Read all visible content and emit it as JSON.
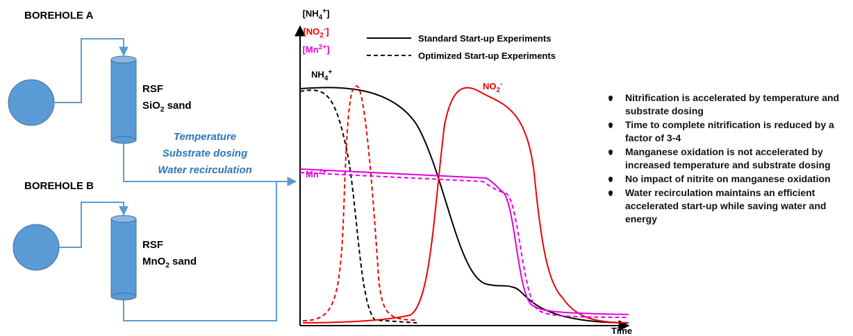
{
  "boreholes": [
    {
      "label": "BOREHOLE A",
      "filter": "RSF",
      "media": {
        "pre": "SiO",
        "sub": "2",
        "post": " sand"
      }
    },
    {
      "label": "BOREHOLE B",
      "filter": "RSF",
      "media": {
        "pre": "MnO",
        "sub": "2",
        "post": " sand"
      }
    }
  ],
  "conditions": [
    "Temperature",
    "Substrate dosing",
    "Water recirculation"
  ],
  "axis": {
    "y_labels": [
      {
        "pre": "[NH",
        "sub": "4",
        "sup": "+",
        "post": "]"
      },
      {
        "pre": "[NO",
        "sub": "2",
        "sup": "-",
        "post": "]"
      },
      {
        "pre": "[Mn",
        "sup": "2+",
        "post": "]"
      }
    ],
    "x_label": "Time"
  },
  "legend": [
    "Standard Start-up Experiments",
    "Optimized Start-up Experiments"
  ],
  "curve_labels": [
    {
      "pre": "NH",
      "sub": "4",
      "sup": "+"
    },
    {
      "pre": "NO",
      "sub": "2",
      "sup": "-"
    },
    {
      "pre": "Mn",
      "sup": "2+"
    }
  ],
  "findings": [
    "Nitrification is accelerated by temperature and substrate dosing",
    "Time to complete nitrification is reduced by a factor of 3-4",
    "Manganese oxidation is not accelerated by increased temperature and substrate dosing",
    "No impact of nitrite on manganese oxidation",
    "Water recirculation maintains an efficient accelerated start-up while saving water and energy"
  ]
}
